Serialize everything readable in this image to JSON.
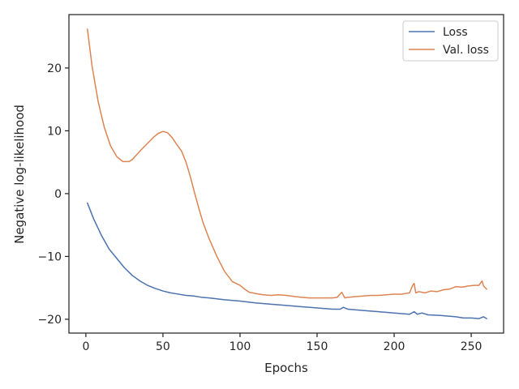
{
  "chart_data": {
    "type": "line",
    "title": "",
    "xlabel": "Epochs",
    "ylabel": "Negative log-likelihood",
    "xlim": [
      -11,
      271
    ],
    "ylim": [
      -22.2,
      28.5
    ],
    "xticks": [
      0,
      50,
      100,
      150,
      200,
      250
    ],
    "yticks": [
      -20,
      -10,
      0,
      10,
      20
    ],
    "xtick_labels": [
      "0",
      "50",
      "100",
      "150",
      "200",
      "250"
    ],
    "ytick_labels": [
      "−20",
      "−10",
      "0",
      "10",
      "20"
    ],
    "grid": false,
    "legend_position": "upper right",
    "series": [
      {
        "name": "Loss",
        "color": "#4c72b0",
        "x": [
          1,
          5,
          10,
          15,
          20,
          25,
          30,
          35,
          40,
          45,
          50,
          55,
          60,
          65,
          70,
          75,
          80,
          90,
          100,
          110,
          120,
          130,
          140,
          150,
          160,
          165,
          167,
          170,
          180,
          190,
          200,
          210,
          213,
          215,
          218,
          222,
          230,
          240,
          245,
          250,
          255,
          258,
          260
        ],
        "y": [
          -1.5,
          -4.0,
          -6.6,
          -8.8,
          -10.3,
          -11.8,
          -13.0,
          -13.9,
          -14.6,
          -15.1,
          -15.5,
          -15.8,
          -16.0,
          -16.2,
          -16.3,
          -16.5,
          -16.6,
          -16.9,
          -17.1,
          -17.4,
          -17.6,
          -17.8,
          -18.0,
          -18.2,
          -18.4,
          -18.4,
          -18.1,
          -18.4,
          -18.6,
          -18.8,
          -19.0,
          -19.2,
          -18.8,
          -19.2,
          -19.0,
          -19.3,
          -19.4,
          -19.6,
          -19.8,
          -19.8,
          -19.9,
          -19.6,
          -19.9
        ]
      },
      {
        "name": "Val. loss",
        "color": "#dd8452",
        "x": [
          1,
          4,
          8,
          12,
          16,
          20,
          24,
          28,
          30,
          33,
          36,
          40,
          44,
          47,
          50,
          53,
          56,
          59,
          62,
          65,
          68,
          70,
          73,
          76,
          80,
          85,
          90,
          95,
          100,
          103,
          106,
          110,
          115,
          120,
          125,
          130,
          133,
          136,
          140,
          145,
          150,
          155,
          160,
          163,
          166,
          168,
          170,
          175,
          180,
          185,
          190,
          195,
          200,
          205,
          210,
          212,
          213,
          214,
          216,
          220,
          224,
          228,
          232,
          236,
          240,
          244,
          248,
          252,
          255,
          257,
          258,
          260
        ],
        "y": [
          26.2,
          20.3,
          14.6,
          10.5,
          7.6,
          5.9,
          5.1,
          5.1,
          5.4,
          6.2,
          7.0,
          8.0,
          9.0,
          9.6,
          9.9,
          9.7,
          8.9,
          7.8,
          6.8,
          5.0,
          2.5,
          0.6,
          -2.1,
          -4.6,
          -7.2,
          -10.0,
          -12.4,
          -14.0,
          -14.6,
          -15.2,
          -15.7,
          -15.9,
          -16.1,
          -16.2,
          -16.1,
          -16.2,
          -16.3,
          -16.4,
          -16.5,
          -16.6,
          -16.6,
          -16.6,
          -16.6,
          -16.5,
          -15.7,
          -16.6,
          -16.5,
          -16.4,
          -16.3,
          -16.2,
          -16.2,
          -16.1,
          -16.0,
          -16.0,
          -15.8,
          -14.6,
          -14.3,
          -15.8,
          -15.6,
          -15.8,
          -15.5,
          -15.6,
          -15.3,
          -15.2,
          -14.8,
          -14.9,
          -14.7,
          -14.6,
          -14.6,
          -13.9,
          -14.7,
          -15.2
        ]
      }
    ]
  }
}
